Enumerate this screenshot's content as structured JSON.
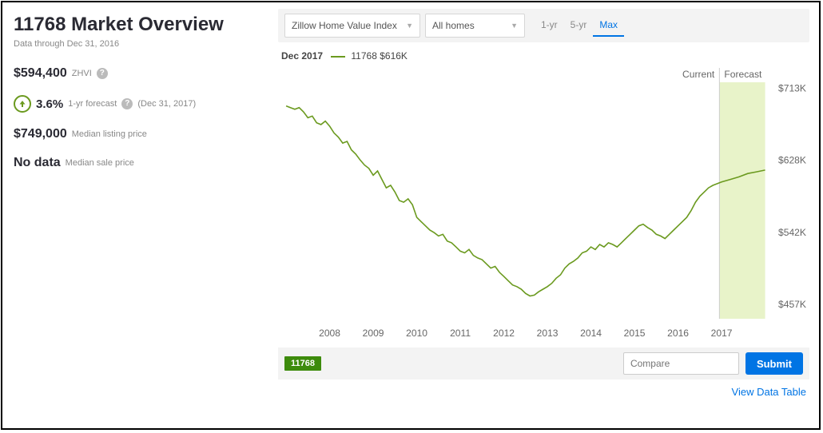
{
  "header": {
    "title": "11768 Market Overview",
    "subtitle": "Data through Dec 31, 2016"
  },
  "stats": {
    "zhvi_value": "$594,400",
    "zhvi_label": "ZHVI",
    "forecast_pct": "3.6%",
    "forecast_label": "1-yr forecast",
    "forecast_date": "(Dec 31, 2017)",
    "listing_value": "$749,000",
    "listing_label": "Median listing price",
    "sale_value": "No data",
    "sale_label": "Median sale price"
  },
  "controls": {
    "select_index": "Zillow Home Value Index",
    "select_homes": "All homes",
    "ranges": [
      "1-yr",
      "5-yr",
      "Max"
    ],
    "range_active": 2
  },
  "legend": {
    "date": "Dec 2017",
    "series_name": "11768",
    "series_value": "$616K"
  },
  "chart": {
    "type": "line",
    "line_color": "#6b9a1f",
    "background_color": "#ffffff",
    "forecast_band_color": "#e8f3c9",
    "label_color": "#666666",
    "current_label": "Current",
    "forecast_label": "Forecast",
    "current_x": 2016.95,
    "x_axis": {
      "ticks": [
        2008,
        2009,
        2010,
        2011,
        2012,
        2013,
        2014,
        2015,
        2016,
        2017
      ],
      "min": 2007.0,
      "max": 2018.0
    },
    "y_axis": {
      "ticks": [
        457,
        542,
        628,
        713
      ],
      "tick_labels": [
        "$457K",
        "$542K",
        "$628K",
        "$713K"
      ],
      "min": 440,
      "max": 720
    },
    "series": [
      {
        "x": 2007.0,
        "y": 692
      },
      {
        "x": 2007.1,
        "y": 690
      },
      {
        "x": 2007.2,
        "y": 688
      },
      {
        "x": 2007.3,
        "y": 690
      },
      {
        "x": 2007.4,
        "y": 685
      },
      {
        "x": 2007.5,
        "y": 678
      },
      {
        "x": 2007.6,
        "y": 680
      },
      {
        "x": 2007.7,
        "y": 672
      },
      {
        "x": 2007.8,
        "y": 670
      },
      {
        "x": 2007.9,
        "y": 674
      },
      {
        "x": 2008.0,
        "y": 668
      },
      {
        "x": 2008.1,
        "y": 660
      },
      {
        "x": 2008.2,
        "y": 655
      },
      {
        "x": 2008.3,
        "y": 648
      },
      {
        "x": 2008.4,
        "y": 650
      },
      {
        "x": 2008.5,
        "y": 640
      },
      {
        "x": 2008.6,
        "y": 635
      },
      {
        "x": 2008.7,
        "y": 628
      },
      {
        "x": 2008.8,
        "y": 622
      },
      {
        "x": 2008.9,
        "y": 618
      },
      {
        "x": 2009.0,
        "y": 610
      },
      {
        "x": 2009.1,
        "y": 615
      },
      {
        "x": 2009.2,
        "y": 605
      },
      {
        "x": 2009.3,
        "y": 595
      },
      {
        "x": 2009.4,
        "y": 598
      },
      {
        "x": 2009.5,
        "y": 590
      },
      {
        "x": 2009.6,
        "y": 580
      },
      {
        "x": 2009.7,
        "y": 578
      },
      {
        "x": 2009.8,
        "y": 582
      },
      {
        "x": 2009.9,
        "y": 575
      },
      {
        "x": 2010.0,
        "y": 560
      },
      {
        "x": 2010.1,
        "y": 555
      },
      {
        "x": 2010.2,
        "y": 550
      },
      {
        "x": 2010.3,
        "y": 545
      },
      {
        "x": 2010.4,
        "y": 542
      },
      {
        "x": 2010.5,
        "y": 538
      },
      {
        "x": 2010.6,
        "y": 540
      },
      {
        "x": 2010.7,
        "y": 532
      },
      {
        "x": 2010.8,
        "y": 530
      },
      {
        "x": 2010.9,
        "y": 525
      },
      {
        "x": 2011.0,
        "y": 520
      },
      {
        "x": 2011.1,
        "y": 518
      },
      {
        "x": 2011.2,
        "y": 522
      },
      {
        "x": 2011.3,
        "y": 515
      },
      {
        "x": 2011.4,
        "y": 512
      },
      {
        "x": 2011.5,
        "y": 510
      },
      {
        "x": 2011.6,
        "y": 505
      },
      {
        "x": 2011.7,
        "y": 500
      },
      {
        "x": 2011.8,
        "y": 502
      },
      {
        "x": 2011.9,
        "y": 495
      },
      {
        "x": 2012.0,
        "y": 490
      },
      {
        "x": 2012.1,
        "y": 485
      },
      {
        "x": 2012.2,
        "y": 480
      },
      {
        "x": 2012.3,
        "y": 478
      },
      {
        "x": 2012.4,
        "y": 475
      },
      {
        "x": 2012.5,
        "y": 470
      },
      {
        "x": 2012.6,
        "y": 467
      },
      {
        "x": 2012.7,
        "y": 468
      },
      {
        "x": 2012.8,
        "y": 472
      },
      {
        "x": 2012.9,
        "y": 475
      },
      {
        "x": 2013.0,
        "y": 478
      },
      {
        "x": 2013.1,
        "y": 482
      },
      {
        "x": 2013.2,
        "y": 488
      },
      {
        "x": 2013.3,
        "y": 492
      },
      {
        "x": 2013.4,
        "y": 500
      },
      {
        "x": 2013.5,
        "y": 505
      },
      {
        "x": 2013.6,
        "y": 508
      },
      {
        "x": 2013.7,
        "y": 512
      },
      {
        "x": 2013.8,
        "y": 518
      },
      {
        "x": 2013.9,
        "y": 520
      },
      {
        "x": 2014.0,
        "y": 525
      },
      {
        "x": 2014.1,
        "y": 522
      },
      {
        "x": 2014.2,
        "y": 528
      },
      {
        "x": 2014.3,
        "y": 525
      },
      {
        "x": 2014.4,
        "y": 530
      },
      {
        "x": 2014.5,
        "y": 528
      },
      {
        "x": 2014.6,
        "y": 525
      },
      {
        "x": 2014.7,
        "y": 530
      },
      {
        "x": 2014.8,
        "y": 535
      },
      {
        "x": 2014.9,
        "y": 540
      },
      {
        "x": 2015.0,
        "y": 545
      },
      {
        "x": 2015.1,
        "y": 550
      },
      {
        "x": 2015.2,
        "y": 552
      },
      {
        "x": 2015.3,
        "y": 548
      },
      {
        "x": 2015.4,
        "y": 545
      },
      {
        "x": 2015.5,
        "y": 540
      },
      {
        "x": 2015.6,
        "y": 538
      },
      {
        "x": 2015.7,
        "y": 535
      },
      {
        "x": 2015.8,
        "y": 540
      },
      {
        "x": 2015.9,
        "y": 545
      },
      {
        "x": 2016.0,
        "y": 550
      },
      {
        "x": 2016.1,
        "y": 555
      },
      {
        "x": 2016.2,
        "y": 560
      },
      {
        "x": 2016.3,
        "y": 568
      },
      {
        "x": 2016.4,
        "y": 578
      },
      {
        "x": 2016.5,
        "y": 585
      },
      {
        "x": 2016.6,
        "y": 590
      },
      {
        "x": 2016.7,
        "y": 595
      },
      {
        "x": 2016.8,
        "y": 598
      },
      {
        "x": 2016.9,
        "y": 600
      },
      {
        "x": 2017.0,
        "y": 602
      },
      {
        "x": 2017.2,
        "y": 605
      },
      {
        "x": 2017.4,
        "y": 608
      },
      {
        "x": 2017.6,
        "y": 612
      },
      {
        "x": 2017.8,
        "y": 614
      },
      {
        "x": 2018.0,
        "y": 616
      }
    ]
  },
  "compare": {
    "tag": "11768",
    "placeholder": "Compare",
    "submit": "Submit"
  },
  "footer": {
    "view_table": "View Data Table"
  }
}
